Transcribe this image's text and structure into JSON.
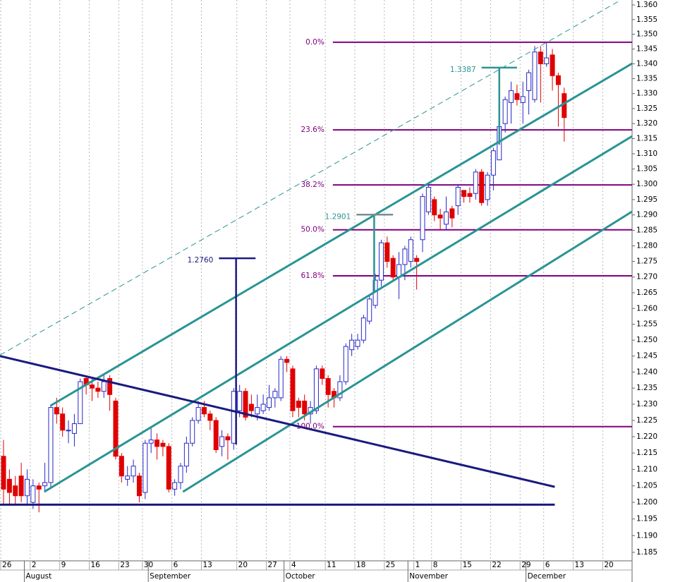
{
  "chart_data": {
    "type": "candlestick",
    "log": true,
    "categories": [
      null,
      null,
      null,
      null,
      null,
      null,
      null,
      null,
      null,
      null,
      null,
      null,
      null,
      null,
      null,
      null,
      null,
      null,
      null,
      null,
      null,
      null,
      null,
      null,
      null,
      null,
      null,
      null,
      null,
      null,
      null,
      null,
      null,
      null,
      null,
      null,
      null,
      null,
      null,
      null,
      null,
      null,
      null,
      null,
      null,
      null,
      null,
      null,
      null,
      null,
      null,
      null,
      null,
      null,
      null,
      null,
      null,
      null,
      null,
      null,
      null,
      null,
      null,
      null,
      null,
      null,
      null,
      null,
      null,
      null,
      null,
      null,
      null,
      null,
      null,
      null,
      null,
      null,
      null,
      null,
      null,
      null,
      null,
      null,
      null,
      null,
      null,
      null,
      null,
      null,
      null,
      null,
      null,
      null,
      null,
      null
    ],
    "open": [
      1.214,
      1.207,
      1.205,
      1.208,
      1.202,
      1.2,
      1.205,
      1.205,
      1.206,
      1.229,
      1.227,
      1.222,
      1.221,
      1.224,
      1.238,
      1.236,
      1.235,
      1.234,
      1.238,
      1.231,
      1.214,
      1.207,
      1.208,
      1.208,
      1.203,
      1.218,
      1.219,
      1.218,
      1.217,
      1.204,
      1.206,
      1.211,
      1.218,
      1.225,
      1.229,
      1.227,
      1.225,
      1.217,
      1.22,
      1.218,
      1.228,
      1.234,
      1.23,
      1.227,
      1.228,
      1.229,
      1.232,
      1.232,
      1.244,
      1.241,
      1.231,
      1.231,
      1.227,
      1.228,
      1.241,
      1.238,
      1.234,
      1.232,
      1.237,
      1.247,
      1.248,
      1.25,
      1.256,
      1.261,
      1.269,
      1.281,
      1.276,
      1.27,
      1.274,
      1.275,
      1.276,
      1.282,
      1.291,
      1.295,
      1.29,
      1.287,
      1.292,
      1.293,
      1.298,
      1.297,
      1.297,
      1.304,
      1.295,
      1.303,
      1.308,
      1.32,
      1.327,
      1.33,
      1.327,
      1.331,
      1.328,
      1.344,
      1.34,
      1.343,
      1.336,
      1.33
    ],
    "high": [
      1.219,
      1.21,
      1.208,
      1.212,
      1.21,
      1.207,
      1.206,
      1.212,
      1.23,
      1.232,
      1.229,
      1.225,
      1.227,
      1.238,
      1.239,
      1.238,
      1.237,
      1.239,
      1.239,
      1.232,
      1.215,
      1.211,
      1.213,
      1.209,
      1.219,
      1.223,
      1.221,
      1.219,
      1.218,
      1.207,
      1.212,
      1.22,
      1.226,
      1.231,
      1.231,
      1.228,
      1.226,
      1.222,
      1.221,
      1.235,
      1.236,
      1.235,
      1.233,
      1.233,
      1.233,
      1.236,
      1.235,
      1.245,
      1.245,
      1.242,
      1.232,
      1.233,
      1.231,
      1.242,
      1.242,
      1.239,
      1.235,
      1.239,
      1.249,
      1.252,
      1.252,
      1.258,
      1.264,
      1.271,
      1.282,
      1.283,
      1.277,
      1.278,
      1.28,
      1.283,
      1.277,
      1.297,
      1.3,
      1.296,
      1.292,
      1.296,
      1.293,
      1.3,
      1.298,
      1.299,
      1.305,
      1.305,
      1.304,
      1.312,
      1.32,
      1.329,
      1.334,
      1.333,
      1.334,
      1.338,
      1.346,
      1.346,
      1.347,
      1.345,
      1.337,
      1.332
    ],
    "low": [
      1.199,
      1.199,
      1.199,
      1.2,
      1.199,
      1.198,
      1.197,
      1.203,
      1.204,
      1.224,
      1.22,
      1.218,
      1.217,
      1.224,
      1.233,
      1.231,
      1.232,
      1.232,
      1.228,
      1.213,
      1.206,
      1.205,
      1.206,
      1.2,
      1.201,
      1.215,
      1.213,
      1.214,
      1.203,
      1.202,
      1.204,
      1.209,
      1.217,
      1.224,
      1.226,
      1.222,
      1.215,
      1.214,
      1.213,
      1.216,
      1.226,
      1.225,
      1.226,
      1.225,
      1.227,
      1.228,
      1.229,
      1.231,
      1.24,
      1.226,
      1.226,
      1.225,
      1.224,
      1.227,
      1.236,
      1.229,
      1.229,
      1.231,
      1.236,
      1.245,
      1.247,
      1.249,
      1.255,
      1.26,
      1.267,
      1.273,
      1.269,
      1.263,
      1.269,
      1.273,
      1.266,
      1.278,
      1.29,
      1.288,
      1.285,
      1.285,
      1.286,
      1.29,
      1.294,
      1.294,
      1.295,
      1.293,
      1.293,
      1.298,
      1.308,
      1.317,
      1.32,
      1.326,
      1.32,
      1.323,
      1.327,
      1.327,
      1.339,
      1.331,
      1.319,
      1.314
    ],
    "close": [
      1.204,
      1.203,
      1.202,
      1.202,
      1.207,
      1.205,
      1.204,
      1.206,
      1.229,
      1.227,
      1.222,
      1.222,
      1.224,
      1.237,
      1.236,
      1.235,
      1.234,
      1.237,
      1.233,
      1.214,
      1.208,
      1.208,
      1.211,
      1.202,
      1.218,
      1.219,
      1.217,
      1.217,
      1.204,
      1.206,
      1.211,
      1.218,
      1.225,
      1.229,
      1.227,
      1.225,
      1.216,
      1.22,
      1.219,
      1.234,
      1.234,
      1.226,
      1.228,
      1.229,
      1.23,
      1.232,
      1.234,
      1.244,
      1.243,
      1.228,
      1.229,
      1.227,
      1.229,
      1.241,
      1.238,
      1.233,
      1.232,
      1.237,
      1.248,
      1.25,
      1.25,
      1.257,
      1.263,
      1.269,
      1.281,
      1.275,
      1.27,
      1.274,
      1.279,
      1.282,
      1.275,
      1.296,
      1.299,
      1.29,
      1.289,
      1.291,
      1.289,
      1.299,
      1.296,
      1.296,
      1.304,
      1.294,
      1.303,
      1.311,
      1.319,
      1.328,
      1.331,
      1.328,
      1.329,
      1.337,
      1.344,
      1.34,
      1.342,
      1.336,
      1.333,
      1.322
    ],
    "up_color": "#2828c8",
    "down_color": "#e00000",
    "xlim": [
      -0.6,
      106.5
    ],
    "xticks": [
      {
        "value": 0,
        "label": "26"
      },
      {
        "value": 5,
        "label": "2"
      },
      {
        "value": 10,
        "label": "9"
      },
      {
        "value": 15,
        "label": "16"
      },
      {
        "value": 20,
        "label": "23"
      },
      {
        "value": 24,
        "label": "30"
      },
      {
        "value": 29,
        "label": "6"
      },
      {
        "value": 34,
        "label": "13"
      },
      {
        "value": 40,
        "label": "20"
      },
      {
        "value": 45,
        "label": "27"
      },
      {
        "value": 49,
        "label": "4"
      },
      {
        "value": 55,
        "label": "11"
      },
      {
        "value": 60,
        "label": "18"
      },
      {
        "value": 65,
        "label": "25"
      },
      {
        "value": 70,
        "label": "1"
      },
      {
        "value": 73,
        "label": "8"
      },
      {
        "value": 78,
        "label": "15"
      },
      {
        "value": 83,
        "label": "22"
      },
      {
        "value": 88,
        "label": "29"
      },
      {
        "value": 92,
        "label": "6"
      },
      {
        "value": 97,
        "label": "13"
      },
      {
        "value": 102,
        "label": "20"
      }
    ],
    "months": [
      {
        "value": 4,
        "label": "August"
      },
      {
        "value": 25,
        "label": "September"
      },
      {
        "value": 48,
        "label": "October"
      },
      {
        "value": 69,
        "label": "November"
      },
      {
        "value": 89,
        "label": "December"
      }
    ],
    "ylim": [
      1.185,
      1.36
    ],
    "yticks": [
      1.185,
      {
        "value": 1.19,
        "label": "1.190"
      },
      1.195,
      {
        "value": 1.2,
        "label": "1.200"
      },
      1.205,
      {
        "value": 1.21,
        "label": "1.210"
      },
      1.215,
      {
        "value": 1.22,
        "label": "1.220"
      },
      1.225,
      {
        "value": 1.23,
        "label": "1.230"
      },
      1.235,
      {
        "value": 1.24,
        "label": "1.240"
      },
      1.245,
      {
        "value": 1.25,
        "label": "1.250"
      },
      1.255,
      {
        "value": 1.26,
        "label": "1.260"
      },
      1.265,
      {
        "value": 1.27,
        "label": "1.270"
      },
      1.275,
      {
        "value": 1.28,
        "label": "1.280"
      },
      1.285,
      {
        "value": 1.29,
        "label": "1.290"
      },
      1.295,
      {
        "value": 1.3,
        "label": "1.300"
      },
      1.305,
      {
        "value": 1.31,
        "label": "1.310"
      },
      1.315,
      {
        "value": 1.32,
        "label": "1.320"
      },
      1.325,
      {
        "value": 1.33,
        "label": "1.330"
      },
      1.335,
      {
        "value": 1.34,
        "label": "1.340"
      },
      1.345,
      {
        "value": 1.35,
        "label": "1.350"
      },
      1.355,
      {
        "value": 1.36,
        "label": "1.360"
      }
    ],
    "grid": true,
    "lines": [
      {
        "color": "#2a9494",
        "width": 1,
        "dash": true,
        "x": [
          -0.6,
          104.6
        ],
        "y": [
          1.2453,
          1.3617
        ]
      },
      {
        "color": "#2a9494",
        "width": 3,
        "dash": false,
        "x": [
          8,
          106.5
        ],
        "y": [
          1.2296,
          1.3401
        ]
      },
      {
        "color": "#2a9494",
        "width": 3,
        "dash": false,
        "x": [
          6.9,
          106.5
        ],
        "y": [
          1.2032,
          1.3158
        ]
      },
      {
        "color": "#2a9494",
        "width": 3,
        "dash": false,
        "x": [
          30.4,
          106.5
        ],
        "y": [
          1.2032,
          1.2911
        ]
      },
      {
        "color": "#1a1a80",
        "width": 3,
        "dash": false,
        "x": [
          -0.6,
          93.4
        ],
        "y": [
          1.245,
          1.2047
        ]
      },
      {
        "color": "#1a1a80",
        "width": 3,
        "dash": false,
        "x": [
          -0.6,
          93.4
        ],
        "y": [
          1.1993,
          1.1993
        ]
      }
    ],
    "fib": {
      "color": "#800080",
      "x_start": 55.8,
      "levels": [
        {
          "label": "0.0%",
          "value": 1.3473
        },
        {
          "label": "23.6%",
          "value": 1.3179
        },
        {
          "label": "38.2%",
          "value": 1.2998
        },
        {
          "label": "50.0%",
          "value": 1.2852
        },
        {
          "label": "61.8%",
          "value": 1.2704
        },
        {
          "label": "100.0%",
          "value": 1.2231
        }
      ]
    },
    "measures": [
      {
        "value": 1.3387,
        "label": "1.3387",
        "base": 1.313,
        "x": 84,
        "cap": [
          81,
          87
        ],
        "color": "#2a9494",
        "cap_color": "#2a9494"
      },
      {
        "value": 1.2901,
        "label": "1.2901",
        "base": 1.2654,
        "x": 62.8,
        "cap": [
          59.8,
          66
        ]
      },
      {
        "value": 1.276,
        "label": "1.2760",
        "base": 1.2176,
        "x": 39.4,
        "cap": [
          36.5,
          42.7
        ],
        "color": "#1a1a80",
        "cap_color": "#1a1a80"
      }
    ]
  }
}
